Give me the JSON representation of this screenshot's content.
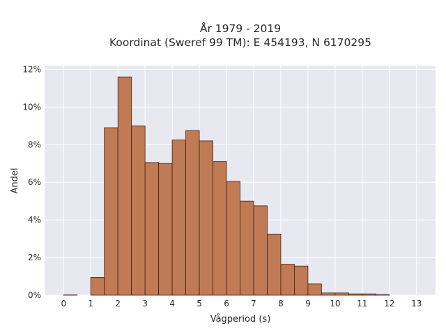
{
  "chart_data": {
    "type": "bar",
    "title_lines": [
      "År 1979 - 2019",
      "Koordinat (Sweref 99 TM): E 454193, N 6170295"
    ],
    "xlabel": "Vågperiod (s)",
    "ylabel": "Andel",
    "x_ticks": [
      0,
      1,
      2,
      3,
      4,
      5,
      6,
      7,
      8,
      9,
      10,
      11,
      12,
      13
    ],
    "x_tick_labels": [
      "0",
      "1",
      "2",
      "3",
      "4",
      "5",
      "6",
      "7",
      "8",
      "9",
      "10",
      "11",
      "12",
      "13"
    ],
    "y_ticks": [
      0,
      2,
      4,
      6,
      8,
      10,
      12
    ],
    "y_tick_labels": [
      "0%",
      "2%",
      "4%",
      "6%",
      "8%",
      "10%",
      "12%"
    ],
    "xlim": [
      -0.7,
      13.7
    ],
    "ylim": [
      0,
      12.2
    ],
    "bin_width": 0.5,
    "bins": [
      {
        "x_start": 0.0,
        "value": 0.02
      },
      {
        "x_start": 0.5,
        "value": 0.0
      },
      {
        "x_start": 1.0,
        "value": 0.95
      },
      {
        "x_start": 1.5,
        "value": 8.9
      },
      {
        "x_start": 2.0,
        "value": 11.6
      },
      {
        "x_start": 2.5,
        "value": 9.0
      },
      {
        "x_start": 3.0,
        "value": 7.05
      },
      {
        "x_start": 3.5,
        "value": 7.0
      },
      {
        "x_start": 4.0,
        "value": 8.25
      },
      {
        "x_start": 4.5,
        "value": 8.75
      },
      {
        "x_start": 5.0,
        "value": 8.2
      },
      {
        "x_start": 5.5,
        "value": 7.1
      },
      {
        "x_start": 6.0,
        "value": 6.05
      },
      {
        "x_start": 6.5,
        "value": 5.0
      },
      {
        "x_start": 7.0,
        "value": 4.75
      },
      {
        "x_start": 7.5,
        "value": 3.25
      },
      {
        "x_start": 8.0,
        "value": 1.65
      },
      {
        "x_start": 8.5,
        "value": 1.55
      },
      {
        "x_start": 9.0,
        "value": 0.6
      },
      {
        "x_start": 9.5,
        "value": 0.12
      },
      {
        "x_start": 10.0,
        "value": 0.12
      },
      {
        "x_start": 10.5,
        "value": 0.07
      },
      {
        "x_start": 11.0,
        "value": 0.07
      },
      {
        "x_start": 11.5,
        "value": 0.03
      },
      {
        "x_start": 12.0,
        "value": 0.0
      }
    ],
    "grid": true,
    "colors": {
      "bar_fill": "#c07a54",
      "bar_edge": "#3c2418",
      "plot_background": "#e8e8f1",
      "grid": "#ffffff"
    }
  }
}
